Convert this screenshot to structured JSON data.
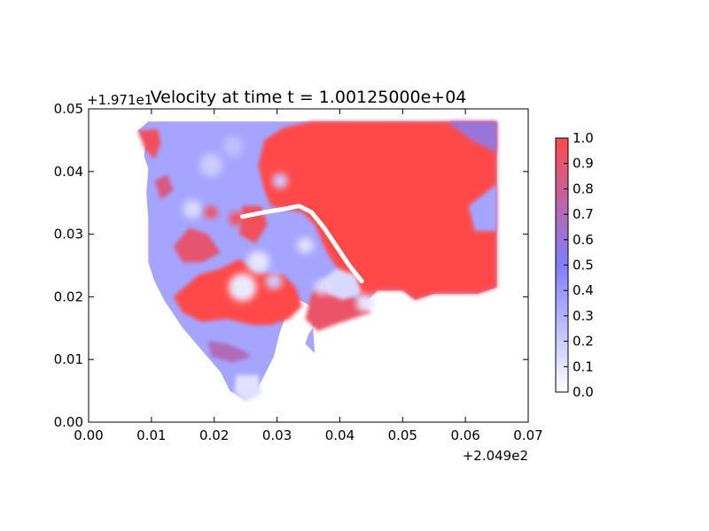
{
  "chart_data": {
    "type": "heatmap",
    "title": "Velocity at time t = 1.00125000e+04",
    "xlabel": "",
    "ylabel": "",
    "x_offset_label": "+2.049e2",
    "y_offset_label": "+1.971e1",
    "xlim": [
      0.0,
      0.07
    ],
    "ylim": [
      0.0,
      0.05
    ],
    "x_ticks": [
      "0.00",
      "0.01",
      "0.02",
      "0.03",
      "0.04",
      "0.05",
      "0.06",
      "0.07"
    ],
    "y_ticks": [
      "0.00",
      "0.01",
      "0.02",
      "0.03",
      "0.04",
      "0.05"
    ],
    "grid": false,
    "colorbar": {
      "range": [
        0.0,
        1.0
      ],
      "ticks": [
        "0.0",
        "0.1",
        "0.2",
        "0.3",
        "0.4",
        "0.5",
        "0.6",
        "0.7",
        "0.8",
        "0.9",
        "1.0"
      ],
      "color_low": "#ffffff",
      "color_mid": "#7f7fff",
      "color_high": "#ff4a4a"
    },
    "regions": [
      {
        "name": "land-boundary",
        "value": 0.35,
        "points": [
          [
            0.0078,
            0.0465
          ],
          [
            0.0095,
            0.048
          ],
          [
            0.065,
            0.048
          ],
          [
            0.065,
            0.0215
          ],
          [
            0.062,
            0.0205
          ],
          [
            0.055,
            0.0205
          ],
          [
            0.052,
            0.0195
          ],
          [
            0.05,
            0.021
          ],
          [
            0.046,
            0.021
          ],
          [
            0.044,
            0.019
          ],
          [
            0.041,
            0.0175
          ],
          [
            0.038,
            0.0165
          ],
          [
            0.036,
            0.0155
          ],
          [
            0.035,
            0.014
          ],
          [
            0.0345,
            0.0125
          ],
          [
            0.036,
            0.011
          ],
          [
            0.0355,
            0.0185
          ],
          [
            0.0335,
            0.0195
          ],
          [
            0.032,
            0.0185
          ],
          [
            0.0305,
            0.0145
          ],
          [
            0.0295,
            0.0105
          ],
          [
            0.028,
            0.0075
          ],
          [
            0.027,
            0.0055
          ],
          [
            0.025,
            0.0035
          ],
          [
            0.0225,
            0.005
          ],
          [
            0.021,
            0.008
          ],
          [
            0.018,
            0.0115
          ],
          [
            0.015,
            0.015
          ],
          [
            0.012,
            0.0195
          ],
          [
            0.0105,
            0.0225
          ],
          [
            0.0095,
            0.0255
          ],
          [
            0.0095,
            0.0285
          ],
          [
            0.0095,
            0.0325
          ],
          [
            0.0092,
            0.0365
          ],
          [
            0.0095,
            0.0405
          ],
          [
            0.0088,
            0.0425
          ],
          [
            0.0092,
            0.045
          ]
        ]
      },
      {
        "name": "main-basin-high",
        "value": 1.0,
        "points": [
          [
            0.0355,
            0.048
          ],
          [
            0.065,
            0.048
          ],
          [
            0.065,
            0.0215
          ],
          [
            0.062,
            0.0205
          ],
          [
            0.055,
            0.0205
          ],
          [
            0.052,
            0.0195
          ],
          [
            0.05,
            0.021
          ],
          [
            0.046,
            0.021
          ],
          [
            0.044,
            0.0195
          ],
          [
            0.042,
            0.021
          ],
          [
            0.04,
            0.024
          ],
          [
            0.038,
            0.027
          ],
          [
            0.036,
            0.0315
          ],
          [
            0.034,
            0.0335
          ],
          [
            0.031,
            0.034
          ],
          [
            0.029,
            0.0345
          ],
          [
            0.028,
            0.037
          ],
          [
            0.027,
            0.041
          ],
          [
            0.028,
            0.045
          ],
          [
            0.031,
            0.047
          ]
        ]
      },
      {
        "name": "southwest-high",
        "value": 1.0,
        "points": [
          [
            0.0135,
            0.02
          ],
          [
            0.0175,
            0.0235
          ],
          [
            0.021,
            0.0245
          ],
          [
            0.024,
            0.026
          ],
          [
            0.027,
            0.024
          ],
          [
            0.031,
            0.0235
          ],
          [
            0.033,
            0.0215
          ],
          [
            0.034,
            0.0185
          ],
          [
            0.032,
            0.0165
          ],
          [
            0.029,
            0.0155
          ],
          [
            0.026,
            0.0155
          ],
          [
            0.022,
            0.0165
          ],
          [
            0.018,
            0.016
          ],
          [
            0.015,
            0.0175
          ]
        ]
      },
      {
        "name": "inner-bay-high",
        "value": 0.92,
        "points": [
          [
            0.0355,
            0.0205
          ],
          [
            0.038,
            0.0225
          ],
          [
            0.04,
            0.021
          ],
          [
            0.043,
            0.0195
          ],
          [
            0.045,
            0.0175
          ],
          [
            0.042,
            0.0165
          ],
          [
            0.039,
            0.0155
          ],
          [
            0.0365,
            0.0145
          ],
          [
            0.0345,
            0.0165
          ]
        ]
      },
      {
        "name": "north-inlet-high",
        "value": 0.95,
        "points": [
          [
            0.0078,
            0.0465
          ],
          [
            0.011,
            0.0468
          ],
          [
            0.0115,
            0.0445
          ],
          [
            0.0105,
            0.042
          ],
          [
            0.009,
            0.0435
          ]
        ]
      },
      {
        "name": "west-mid-high",
        "value": 0.9,
        "points": [
          [
            0.0135,
            0.028
          ],
          [
            0.016,
            0.031
          ],
          [
            0.019,
            0.03
          ],
          [
            0.021,
            0.027
          ],
          [
            0.018,
            0.0255
          ],
          [
            0.015,
            0.0255
          ]
        ]
      },
      {
        "name": "west-upper-high",
        "value": 0.85,
        "points": [
          [
            0.0105,
            0.0385
          ],
          [
            0.0125,
            0.0395
          ],
          [
            0.0135,
            0.037
          ],
          [
            0.0115,
            0.0355
          ]
        ]
      },
      {
        "name": "central-strip-high",
        "value": 0.95,
        "points": [
          [
            0.0245,
            0.0345
          ],
          [
            0.0275,
            0.0345
          ],
          [
            0.0285,
            0.0315
          ],
          [
            0.0265,
            0.0285
          ],
          [
            0.024,
            0.03
          ]
        ]
      },
      {
        "name": "south-shore-mid",
        "value": 0.7,
        "points": [
          [
            0.019,
            0.013
          ],
          [
            0.022,
            0.0125
          ],
          [
            0.0245,
            0.0115
          ],
          [
            0.026,
            0.0105
          ],
          [
            0.023,
            0.0095
          ],
          [
            0.0195,
            0.0105
          ]
        ]
      },
      {
        "name": "east-channel-low",
        "value": 0.35,
        "points": [
          [
            0.0605,
            0.0345
          ],
          [
            0.065,
            0.038
          ],
          [
            0.065,
            0.0305
          ],
          [
            0.0615,
            0.0305
          ]
        ]
      },
      {
        "name": "northeast-corner-mid",
        "value": 0.6,
        "points": [
          [
            0.057,
            0.048
          ],
          [
            0.065,
            0.048
          ],
          [
            0.065,
            0.043
          ],
          [
            0.061,
            0.045
          ]
        ]
      },
      {
        "name": "southern-tip-low",
        "value": 0.12,
        "points": [
          [
            0.0235,
            0.0075
          ],
          [
            0.027,
            0.0075
          ],
          [
            0.0275,
            0.0045
          ],
          [
            0.025,
            0.0032
          ],
          [
            0.0232,
            0.0048
          ]
        ]
      },
      {
        "name": "bay-lobe-low",
        "value": 0.15,
        "points": [
          [
            0.037,
            0.0225
          ],
          [
            0.0395,
            0.0245
          ],
          [
            0.0425,
            0.0235
          ],
          [
            0.0435,
            0.0205
          ],
          [
            0.0405,
            0.0195
          ],
          [
            0.038,
            0.0205
          ]
        ]
      }
    ],
    "features": [
      {
        "name": "white-channel-line",
        "points": [
          [
            0.0245,
            0.0328
          ],
          [
            0.028,
            0.0335
          ],
          [
            0.031,
            0.034
          ],
          [
            0.0335,
            0.0345
          ],
          [
            0.0355,
            0.0335
          ],
          [
            0.0375,
            0.031
          ],
          [
            0.0395,
            0.028
          ],
          [
            0.0415,
            0.025
          ],
          [
            0.0435,
            0.0225
          ]
        ]
      }
    ],
    "blobs": [
      {
        "x": 0.0245,
        "y": 0.0215,
        "r": 0.0022,
        "value": 0.08
      },
      {
        "x": 0.027,
        "y": 0.0255,
        "r": 0.0018,
        "value": 0.1
      },
      {
        "x": 0.0345,
        "y": 0.0282,
        "r": 0.0013,
        "value": 0.12
      },
      {
        "x": 0.0305,
        "y": 0.0385,
        "r": 0.0012,
        "value": 0.2
      },
      {
        "x": 0.0195,
        "y": 0.041,
        "r": 0.0018,
        "value": 0.2
      },
      {
        "x": 0.023,
        "y": 0.044,
        "r": 0.0016,
        "value": 0.25
      },
      {
        "x": 0.0165,
        "y": 0.034,
        "r": 0.0015,
        "value": 0.15
      },
      {
        "x": 0.044,
        "y": 0.019,
        "r": 0.0014,
        "value": 0.1
      },
      {
        "x": 0.0372,
        "y": 0.0215,
        "r": 0.0012,
        "value": 0.12
      },
      {
        "x": 0.0235,
        "y": 0.0325,
        "r": 0.0011,
        "value": 1.0
      },
      {
        "x": 0.0195,
        "y": 0.0335,
        "r": 0.001,
        "value": 1.0
      },
      {
        "x": 0.0295,
        "y": 0.0225,
        "r": 0.0013,
        "value": 0.2
      }
    ]
  }
}
